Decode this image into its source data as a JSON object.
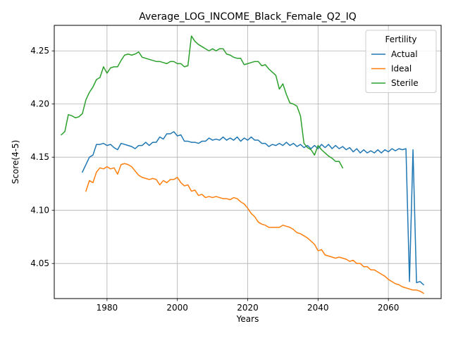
{
  "chart_data": {
    "type": "line",
    "title": "Average_LOG_INCOME_Black_Female_Q2_IQ",
    "xlabel": "Years",
    "ylabel": "Score(4-5)",
    "xlim": [
      1965,
      2075
    ],
    "ylim": [
      4.017,
      4.274
    ],
    "x_ticks": [
      1980,
      2000,
      2020,
      2040,
      2060
    ],
    "y_ticks": [
      4.05,
      4.1,
      4.15,
      4.2,
      4.25
    ],
    "x_tick_labels": [
      "1980",
      "2000",
      "2020",
      "2040",
      "2060"
    ],
    "y_tick_labels": [
      "4.05",
      "4.10",
      "4.15",
      "4.20",
      "4.25"
    ],
    "grid": true,
    "legend": {
      "title": "Fertility",
      "placement": "top-right"
    },
    "series": [
      {
        "name": "Actual",
        "color": "#1f77b4",
        "x": [
          1973,
          1974,
          1975,
          1976,
          1977,
          1978,
          1979,
          1980,
          1981,
          1982,
          1983,
          1984,
          1985,
          1986,
          1987,
          1988,
          1989,
          1990,
          1991,
          1992,
          1993,
          1994,
          1995,
          1996,
          1997,
          1998,
          1999,
          2000,
          2001,
          2002,
          2003,
          2004,
          2005,
          2006,
          2007,
          2008,
          2009,
          2010,
          2011,
          2012,
          2013,
          2014,
          2015,
          2016,
          2017,
          2018,
          2019,
          2020,
          2021,
          2022,
          2023,
          2024,
          2025,
          2026,
          2027,
          2028,
          2029,
          2030,
          2031,
          2032,
          2033,
          2034,
          2035,
          2036,
          2037,
          2038,
          2039,
          2040,
          2041,
          2042,
          2043,
          2044,
          2045,
          2046,
          2047,
          2048,
          2049,
          2050,
          2051,
          2052,
          2053,
          2054,
          2055,
          2056,
          2057,
          2058,
          2059,
          2060,
          2061,
          2062,
          2063,
          2064,
          2065,
          2066,
          2067,
          2068,
          2069,
          2070
        ],
        "values": [
          4.136,
          4.143,
          4.15,
          4.152,
          4.162,
          4.162,
          4.163,
          4.161,
          4.162,
          4.159,
          4.157,
          4.163,
          4.162,
          4.161,
          4.16,
          4.158,
          4.161,
          4.161,
          4.164,
          4.161,
          4.164,
          4.164,
          4.169,
          4.167,
          4.172,
          4.172,
          4.174,
          4.17,
          4.171,
          4.165,
          4.165,
          4.164,
          4.164,
          4.163,
          4.165,
          4.165,
          4.168,
          4.166,
          4.167,
          4.166,
          4.169,
          4.166,
          4.168,
          4.166,
          4.169,
          4.165,
          4.168,
          4.166,
          4.169,
          4.166,
          4.166,
          4.163,
          4.163,
          4.16,
          4.162,
          4.161,
          4.163,
          4.161,
          4.164,
          4.161,
          4.163,
          4.16,
          4.162,
          4.159,
          4.161,
          4.158,
          4.161,
          4.158,
          4.162,
          4.159,
          4.162,
          4.158,
          4.161,
          4.158,
          4.16,
          4.157,
          4.159,
          4.155,
          4.158,
          4.154,
          4.157,
          4.154,
          4.156,
          4.154,
          4.157,
          4.154,
          4.157,
          4.155,
          4.158,
          4.156,
          4.158,
          4.157,
          4.158,
          4.033,
          4.157,
          4.032,
          4.033,
          4.03
        ]
      },
      {
        "name": "Ideal",
        "color": "#ff7f0e",
        "x": [
          1974,
          1975,
          1976,
          1977,
          1978,
          1979,
          1980,
          1981,
          1982,
          1983,
          1984,
          1985,
          1986,
          1987,
          1988,
          1989,
          1990,
          1991,
          1992,
          1993,
          1994,
          1995,
          1996,
          1997,
          1998,
          1999,
          2000,
          2001,
          2002,
          2003,
          2004,
          2005,
          2006,
          2007,
          2008,
          2009,
          2010,
          2011,
          2012,
          2013,
          2014,
          2015,
          2016,
          2017,
          2018,
          2019,
          2020,
          2021,
          2022,
          2023,
          2024,
          2025,
          2026,
          2027,
          2028,
          2029,
          2030,
          2031,
          2032,
          2033,
          2034,
          2035,
          2036,
          2037,
          2038,
          2039,
          2040,
          2041,
          2042,
          2043,
          2044,
          2045,
          2046,
          2047,
          2048,
          2049,
          2050,
          2051,
          2052,
          2053,
          2054,
          2055,
          2056,
          2057,
          2058,
          2059,
          2060,
          2061,
          2062,
          2063,
          2064,
          2065,
          2066,
          2067,
          2068,
          2069,
          2070
        ],
        "values": [
          4.118,
          4.128,
          4.126,
          4.136,
          4.14,
          4.139,
          4.141,
          4.139,
          4.14,
          4.134,
          4.143,
          4.144,
          4.143,
          4.141,
          4.137,
          4.133,
          4.131,
          4.13,
          4.129,
          4.13,
          4.129,
          4.124,
          4.128,
          4.126,
          4.129,
          4.129,
          4.131,
          4.126,
          4.123,
          4.124,
          4.118,
          4.119,
          4.114,
          4.115,
          4.112,
          4.113,
          4.112,
          4.113,
          4.112,
          4.111,
          4.111,
          4.11,
          4.112,
          4.111,
          4.108,
          4.106,
          4.102,
          4.097,
          4.094,
          4.089,
          4.087,
          4.086,
          4.084,
          4.084,
          4.084,
          4.084,
          4.086,
          4.085,
          4.084,
          4.082,
          4.079,
          4.078,
          4.076,
          4.074,
          4.071,
          4.068,
          4.062,
          4.063,
          4.058,
          4.057,
          4.056,
          4.055,
          4.056,
          4.055,
          4.054,
          4.052,
          4.053,
          4.05,
          4.05,
          4.047,
          4.047,
          4.044,
          4.044,
          4.042,
          4.04,
          4.038,
          4.035,
          4.033,
          4.031,
          4.03,
          4.028,
          4.027,
          4.026,
          4.025,
          4.025,
          4.024,
          4.022
        ]
      },
      {
        "name": "Sterile",
        "color": "#2ca02c",
        "x": [
          1967,
          1968,
          1969,
          1970,
          1971,
          1972,
          1973,
          1974,
          1975,
          1976,
          1977,
          1978,
          1979,
          1980,
          1981,
          1982,
          1983,
          1984,
          1985,
          1986,
          1987,
          1988,
          1989,
          1990,
          1991,
          1992,
          1993,
          1994,
          1995,
          1996,
          1997,
          1998,
          1999,
          2000,
          2001,
          2002,
          2003,
          2004,
          2005,
          2006,
          2007,
          2008,
          2009,
          2010,
          2011,
          2012,
          2013,
          2014,
          2015,
          2016,
          2017,
          2018,
          2019,
          2020,
          2021,
          2022,
          2023,
          2024,
          2025,
          2026,
          2027,
          2028,
          2029,
          2030,
          2031,
          2032,
          2033,
          2034,
          2035,
          2036,
          2037,
          2038,
          2039,
          2040,
          2041,
          2042,
          2043,
          2044,
          2045,
          2046,
          2047
        ],
        "values": [
          4.171,
          4.174,
          4.19,
          4.189,
          4.187,
          4.188,
          4.191,
          4.204,
          4.211,
          4.216,
          4.223,
          4.225,
          4.235,
          4.229,
          4.234,
          4.235,
          4.235,
          4.241,
          4.246,
          4.247,
          4.246,
          4.247,
          4.249,
          4.244,
          4.243,
          4.242,
          4.241,
          4.24,
          4.24,
          4.239,
          4.238,
          4.24,
          4.24,
          4.238,
          4.238,
          4.235,
          4.236,
          4.264,
          4.259,
          4.256,
          4.254,
          4.252,
          4.25,
          4.252,
          4.25,
          4.252,
          4.252,
          4.247,
          4.246,
          4.244,
          4.243,
          4.243,
          4.237,
          4.238,
          4.239,
          4.24,
          4.24,
          4.236,
          4.237,
          4.233,
          4.23,
          4.227,
          4.214,
          4.219,
          4.209,
          4.201,
          4.2,
          4.198,
          4.189,
          4.163,
          4.159,
          4.157,
          4.152,
          4.161,
          4.157,
          4.154,
          4.151,
          4.149,
          4.146,
          4.146,
          4.14
        ]
      }
    ]
  }
}
